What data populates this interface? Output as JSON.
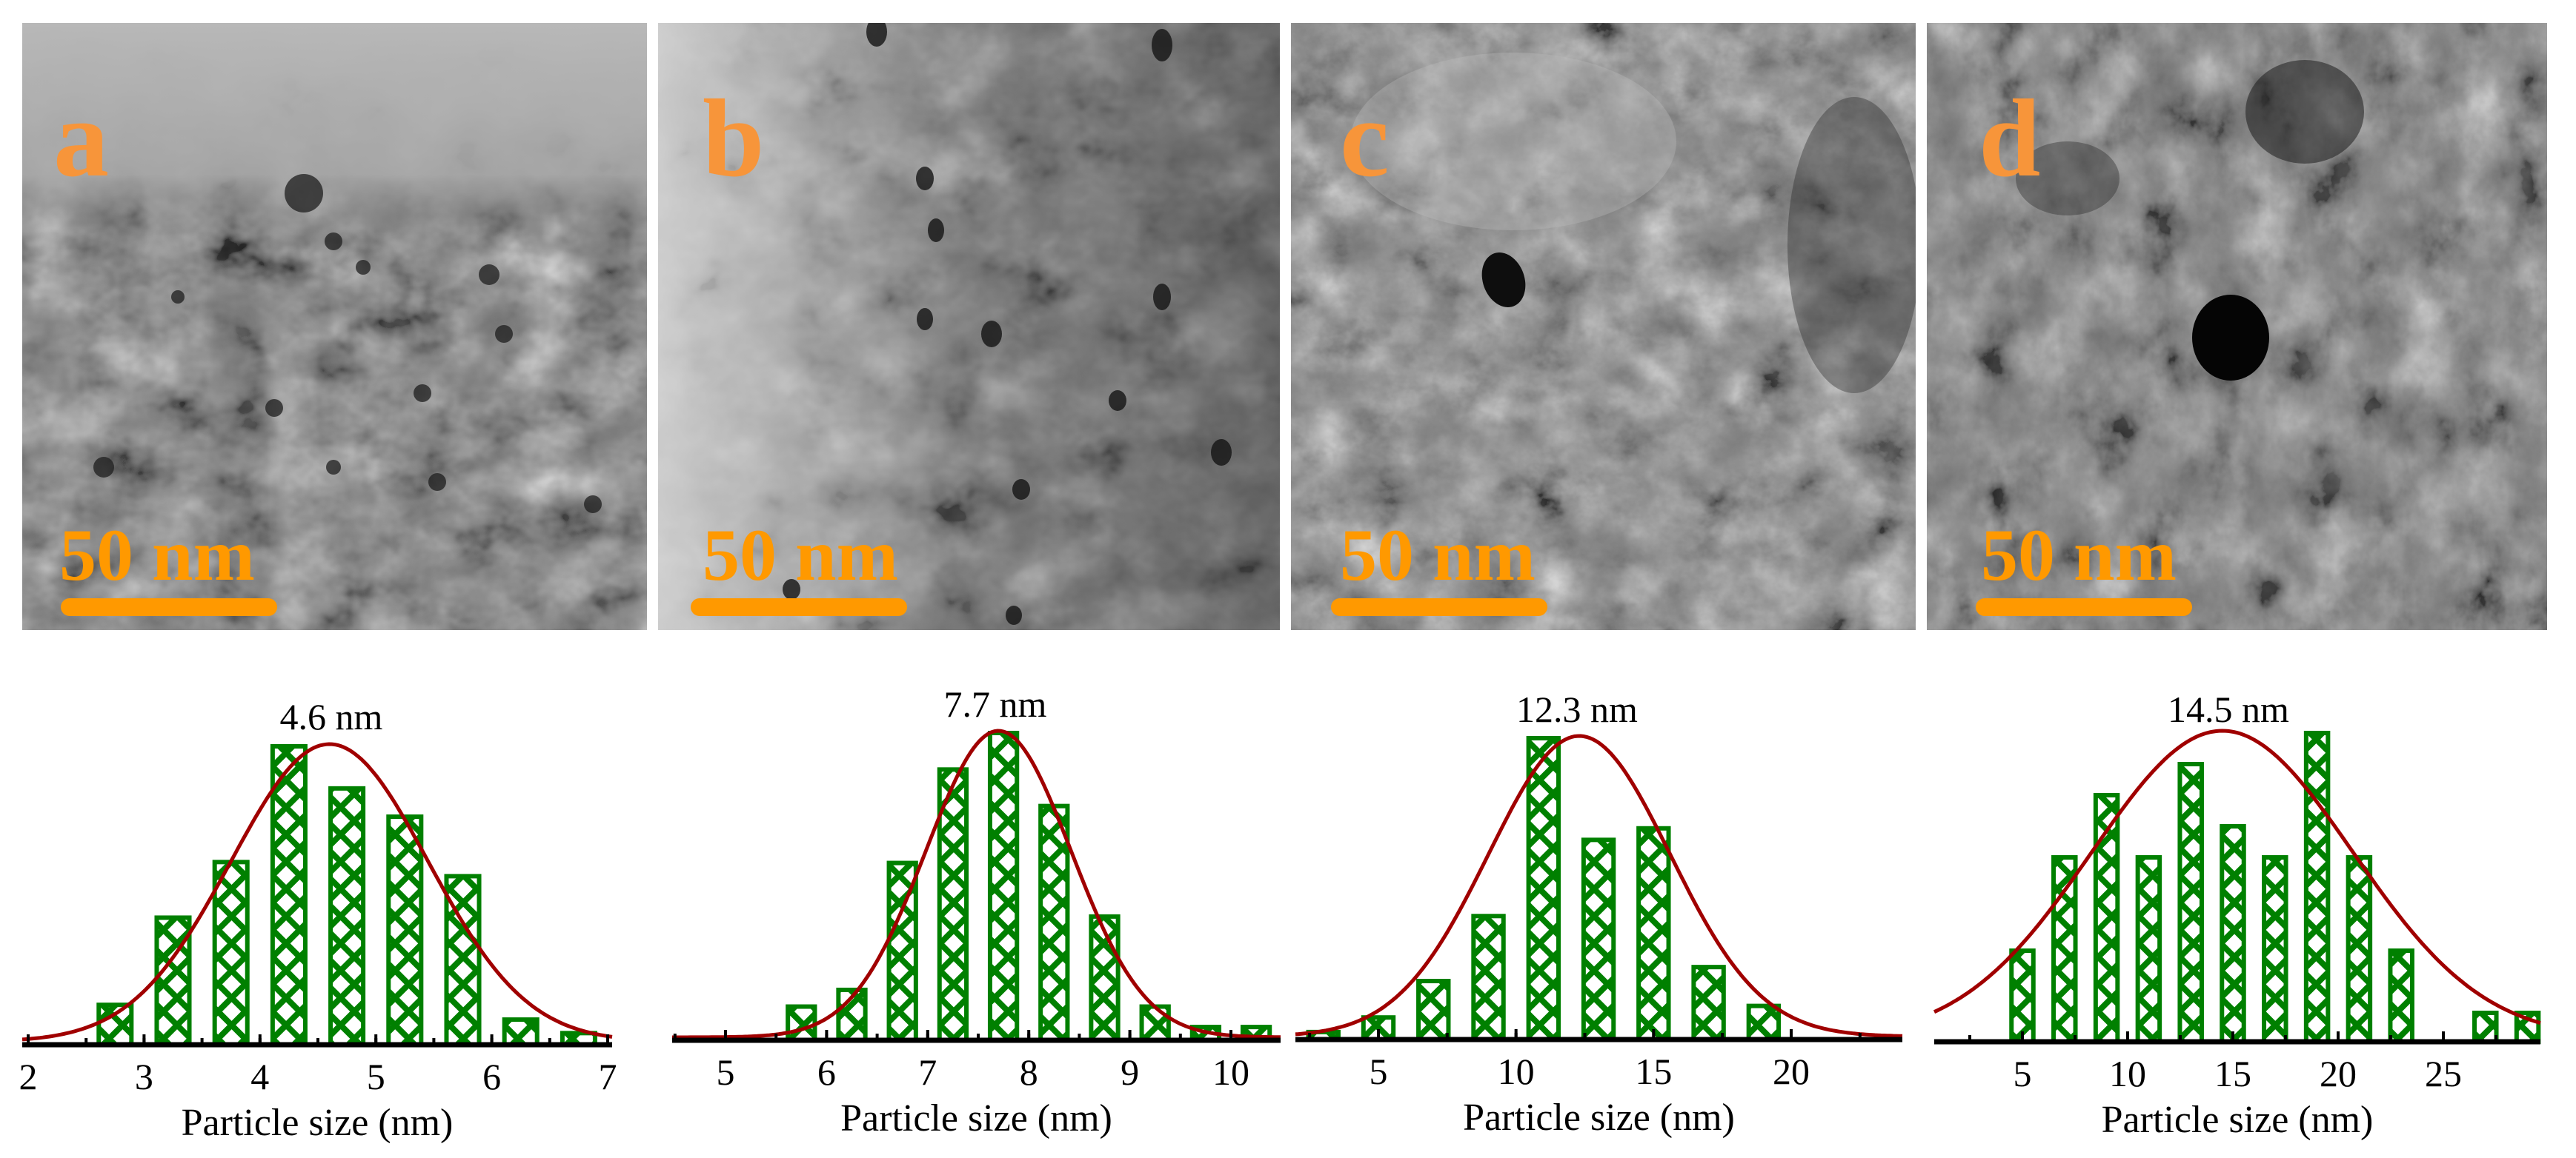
{
  "figure": {
    "panels": [
      {
        "letter": "a",
        "scale_bar_label": "50 nm",
        "mean_label": "4.6 nm"
      },
      {
        "letter": "b",
        "scale_bar_label": "50 nm",
        "mean_label": "7.7 nm"
      },
      {
        "letter": "c",
        "scale_bar_label": "50 nm",
        "mean_label": "12.3 nm"
      },
      {
        "letter": "d",
        "scale_bar_label": "50 nm",
        "mean_label": "14.5 nm"
      }
    ],
    "colors": {
      "panel_letter": "#f7953a",
      "scale_bar": "#ff9900",
      "bar_fill": "#008000",
      "fit_curve": "#a00000",
      "axis": "#000000"
    }
  },
  "chart_data": [
    {
      "type": "bar",
      "panel": "a",
      "title": "4.6 nm",
      "xlabel": "Particle size (nm)",
      "ylabel": "",
      "xlim": [
        2,
        7
      ],
      "xticks": [
        2,
        3,
        4,
        5,
        6,
        7
      ],
      "bin_centers": [
        2.75,
        3.25,
        3.75,
        4.25,
        4.75,
        5.25,
        5.75,
        6.25,
        6.75
      ],
      "values": [
        0.14,
        0.43,
        0.615,
        1.0,
        0.86,
        0.766,
        0.568,
        0.091,
        0.046
      ],
      "value_units": "relative frequency (normalized to max)",
      "fit": {
        "type": "gaussian",
        "mean": 4.6,
        "sigma": 0.85
      },
      "grid": false,
      "legend": "none"
    },
    {
      "type": "bar",
      "panel": "b",
      "title": "7.7 nm",
      "xlabel": "Particle size (nm)",
      "ylabel": "",
      "xlim": [
        4.5,
        10.5
      ],
      "xticks": [
        5,
        6,
        7,
        8,
        9,
        10
      ],
      "bin_centers": [
        5.75,
        6.25,
        6.75,
        7.25,
        7.75,
        8.25,
        8.75,
        9.25,
        9.75,
        10.25
      ],
      "values": [
        0.116,
        0.17,
        0.58,
        0.882,
        1.0,
        0.764,
        0.407,
        0.116,
        0.05,
        0.05
      ],
      "value_units": "relative frequency (normalized to max)",
      "fit": {
        "type": "gaussian",
        "mean": 7.7,
        "sigma": 0.72
      },
      "grid": false,
      "legend": "none"
    },
    {
      "type": "bar",
      "panel": "c",
      "title": "12.3 nm",
      "xlabel": "Particle size (nm)",
      "ylabel": "",
      "xlim": [
        1,
        24
      ],
      "xticks": [
        5,
        10,
        15,
        20
      ],
      "bin_centers": [
        3,
        5,
        7,
        9,
        11,
        13,
        15,
        17,
        19
      ],
      "values": [
        0.032,
        0.08,
        0.2,
        0.414,
        1.0,
        0.665,
        0.703,
        0.246,
        0.118
      ],
      "value_units": "relative frequency (normalized to max)",
      "fit": {
        "type": "gaussian",
        "mean": 12.3,
        "sigma": 3.3
      },
      "grid": false,
      "legend": "none"
    },
    {
      "type": "bar",
      "panel": "d",
      "title": "14.5 nm",
      "xlabel": "Particle size (nm)",
      "ylabel": "",
      "xlim": [
        0,
        30
      ],
      "xticks": [
        5,
        10,
        15,
        20,
        25
      ],
      "bin_centers": [
        5,
        7,
        9,
        11,
        13,
        15,
        17,
        19,
        21,
        23,
        27,
        29
      ],
      "values": [
        0.3,
        0.6,
        0.8,
        0.6,
        0.9,
        0.7,
        0.6,
        1.0,
        0.6,
        0.3,
        0.1,
        0.1
      ],
      "value_units": "relative frequency (normalized to max)",
      "fit": {
        "type": "gaussian",
        "mean": 14.5,
        "sigma": 6.2
      },
      "grid": false,
      "legend": "none"
    }
  ]
}
